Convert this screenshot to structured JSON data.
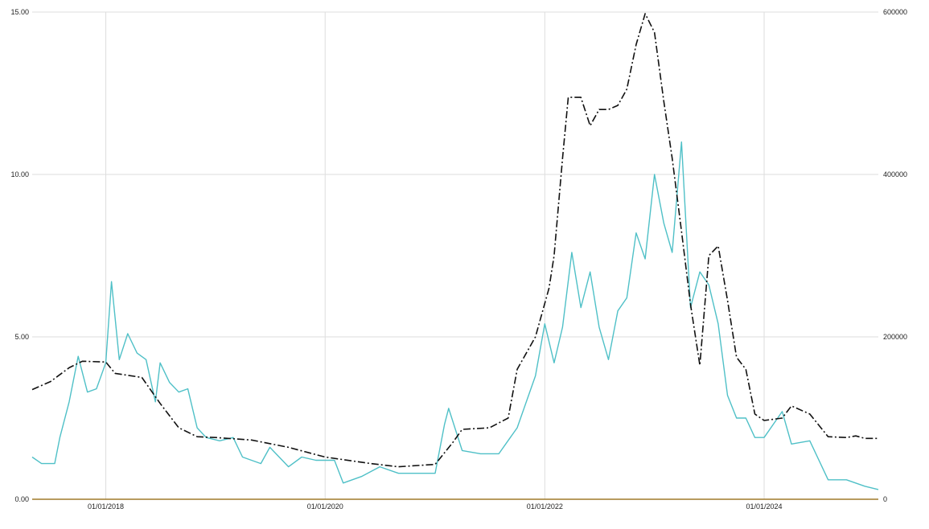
{
  "chart_data": {
    "type": "line",
    "title": "",
    "xlabel": "",
    "ylabel": "",
    "y2label": "",
    "grid": true,
    "legend": "none",
    "x_ticks": [
      "01/01/2018",
      "01/01/2020",
      "01/01/2022",
      "01/01/2024"
    ],
    "y_ticks": [
      "0.00",
      "5.00",
      "10.00",
      "15.00"
    ],
    "y2_ticks": [
      "0",
      "200000",
      "400000",
      "600000"
    ],
    "ylim": [
      0,
      15
    ],
    "y2lim": [
      0,
      600000
    ],
    "xlim": [
      "2017-05-01",
      "2025-01-15"
    ],
    "colors": {
      "series_left": "#4fc0c7",
      "series_right": "#111111",
      "baseline": "#a07a2a",
      "grid": "#dddddd"
    },
    "series": [
      {
        "axis": "left",
        "style": "solid",
        "points": [
          [
            "2017-05-01",
            1.3
          ],
          [
            "2017-06-01",
            1.1
          ],
          [
            "2017-07-15",
            1.1
          ],
          [
            "2017-08-01",
            1.9
          ],
          [
            "2017-09-01",
            3.0
          ],
          [
            "2017-10-01",
            4.4
          ],
          [
            "2017-11-01",
            3.3
          ],
          [
            "2017-12-01",
            3.4
          ],
          [
            "2018-01-01",
            4.2
          ],
          [
            "2018-01-20",
            6.7
          ],
          [
            "2018-02-15",
            4.3
          ],
          [
            "2018-03-15",
            5.1
          ],
          [
            "2018-04-15",
            4.5
          ],
          [
            "2018-05-15",
            4.3
          ],
          [
            "2018-06-15",
            3.0
          ],
          [
            "2018-07-01",
            4.2
          ],
          [
            "2018-08-01",
            3.6
          ],
          [
            "2018-09-01",
            3.3
          ],
          [
            "2018-10-01",
            3.4
          ],
          [
            "2018-11-01",
            2.2
          ],
          [
            "2018-12-01",
            1.9
          ],
          [
            "2019-01-15",
            1.8
          ],
          [
            "2019-03-01",
            1.9
          ],
          [
            "2019-04-01",
            1.3
          ],
          [
            "2019-05-01",
            1.2
          ],
          [
            "2019-06-01",
            1.1
          ],
          [
            "2019-07-01",
            1.6
          ],
          [
            "2019-08-01",
            1.3
          ],
          [
            "2019-09-01",
            1.0
          ],
          [
            "2019-10-15",
            1.3
          ],
          [
            "2019-12-01",
            1.2
          ],
          [
            "2020-02-01",
            1.2
          ],
          [
            "2020-03-01",
            0.5
          ],
          [
            "2020-05-01",
            0.7
          ],
          [
            "2020-07-01",
            1.0
          ],
          [
            "2020-09-01",
            0.8
          ],
          [
            "2020-11-01",
            0.8
          ],
          [
            "2021-01-01",
            0.8
          ],
          [
            "2021-02-01",
            2.3
          ],
          [
            "2021-02-15",
            2.8
          ],
          [
            "2021-04-01",
            1.5
          ],
          [
            "2021-06-01",
            1.4
          ],
          [
            "2021-08-01",
            1.4
          ],
          [
            "2021-10-01",
            2.2
          ],
          [
            "2021-12-01",
            3.8
          ],
          [
            "2022-01-01",
            5.4
          ],
          [
            "2022-02-01",
            4.2
          ],
          [
            "2022-03-01",
            5.3
          ],
          [
            "2022-04-01",
            7.6
          ],
          [
            "2022-05-01",
            5.9
          ],
          [
            "2022-06-01",
            7.0
          ],
          [
            "2022-07-01",
            5.3
          ],
          [
            "2022-08-01",
            4.3
          ],
          [
            "2022-09-01",
            5.8
          ],
          [
            "2022-10-01",
            6.2
          ],
          [
            "2022-11-01",
            8.2
          ],
          [
            "2022-12-01",
            7.4
          ],
          [
            "2023-01-01",
            10.0
          ],
          [
            "2023-02-01",
            8.5
          ],
          [
            "2023-03-01",
            7.6
          ],
          [
            "2023-04-01",
            11.0
          ],
          [
            "2023-05-01",
            5.9
          ],
          [
            "2023-06-01",
            7.0
          ],
          [
            "2023-07-01",
            6.6
          ],
          [
            "2023-08-01",
            5.4
          ],
          [
            "2023-09-01",
            3.2
          ],
          [
            "2023-10-01",
            2.5
          ],
          [
            "2023-11-01",
            2.5
          ],
          [
            "2023-12-01",
            1.9
          ],
          [
            "2024-01-01",
            1.9
          ],
          [
            "2024-03-01",
            2.7
          ],
          [
            "2024-04-01",
            1.7
          ],
          [
            "2024-06-01",
            1.8
          ],
          [
            "2024-08-01",
            0.6
          ],
          [
            "2024-10-01",
            0.6
          ],
          [
            "2024-12-01",
            0.4
          ],
          [
            "2025-01-15",
            0.3
          ]
        ]
      },
      {
        "axis": "right",
        "style": "dashed",
        "points": [
          [
            "2017-05-01",
            135000
          ],
          [
            "2017-07-01",
            145000
          ],
          [
            "2017-09-01",
            162000
          ],
          [
            "2017-10-15",
            170000
          ],
          [
            "2018-01-01",
            169000
          ],
          [
            "2018-02-01",
            155000
          ],
          [
            "2018-05-01",
            150000
          ],
          [
            "2018-07-01",
            118000
          ],
          [
            "2018-09-01",
            88000
          ],
          [
            "2018-11-01",
            77000
          ],
          [
            "2019-01-01",
            76000
          ],
          [
            "2019-05-01",
            73000
          ],
          [
            "2019-09-01",
            64000
          ],
          [
            "2020-01-01",
            52000
          ],
          [
            "2020-06-01",
            44000
          ],
          [
            "2020-09-01",
            40000
          ],
          [
            "2021-01-01",
            43000
          ],
          [
            "2021-03-01",
            70000
          ],
          [
            "2021-04-01",
            86000
          ],
          [
            "2021-07-01",
            88000
          ],
          [
            "2021-09-01",
            100000
          ],
          [
            "2021-10-01",
            160000
          ],
          [
            "2021-12-01",
            200000
          ],
          [
            "2022-01-15",
            260000
          ],
          [
            "2022-02-01",
            300000
          ],
          [
            "2022-03-01",
            420000
          ],
          [
            "2022-03-20",
            495000
          ],
          [
            "2022-05-01",
            495000
          ],
          [
            "2022-06-01",
            460000
          ],
          [
            "2022-07-01",
            480000
          ],
          [
            "2022-08-01",
            480000
          ],
          [
            "2022-09-01",
            485000
          ],
          [
            "2022-10-01",
            505000
          ],
          [
            "2022-11-01",
            560000
          ],
          [
            "2022-12-01",
            598000
          ],
          [
            "2023-01-01",
            575000
          ],
          [
            "2023-02-01",
            490000
          ],
          [
            "2023-03-01",
            420000
          ],
          [
            "2023-04-01",
            330000
          ],
          [
            "2023-05-01",
            240000
          ],
          [
            "2023-06-01",
            165000
          ],
          [
            "2023-07-01",
            300000
          ],
          [
            "2023-08-01",
            312000
          ],
          [
            "2023-09-01",
            245000
          ],
          [
            "2023-10-01",
            175000
          ],
          [
            "2023-11-01",
            160000
          ],
          [
            "2023-12-01",
            105000
          ],
          [
            "2024-01-01",
            97000
          ],
          [
            "2024-03-01",
            100000
          ],
          [
            "2024-04-01",
            115000
          ],
          [
            "2024-06-01",
            105000
          ],
          [
            "2024-08-01",
            77000
          ],
          [
            "2024-10-01",
            76000
          ],
          [
            "2024-11-01",
            78000
          ],
          [
            "2024-12-01",
            75000
          ],
          [
            "2025-01-15",
            75000
          ]
        ]
      }
    ]
  }
}
